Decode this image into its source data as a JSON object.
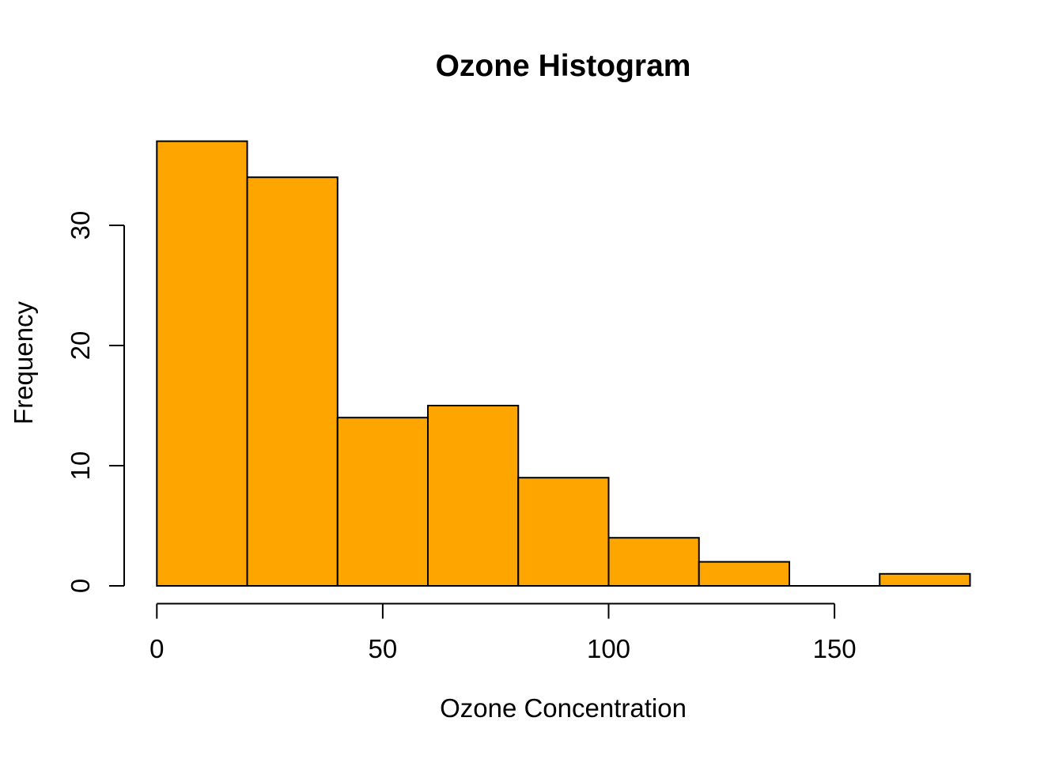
{
  "chart_data": {
    "type": "bar",
    "subtype": "histogram",
    "title": "Ozone Histogram",
    "xlabel": "Ozone Concentration",
    "ylabel": "Frequency",
    "bin_edges": [
      0,
      20,
      40,
      60,
      80,
      100,
      120,
      140,
      160,
      180
    ],
    "counts": [
      37,
      34,
      14,
      15,
      9,
      4,
      2,
      0,
      1
    ],
    "x_ticks": [
      0,
      50,
      100,
      150
    ],
    "y_ticks": [
      0,
      10,
      20,
      30
    ],
    "xlim": [
      0,
      180
    ],
    "ylim": [
      0,
      37
    ],
    "grid": false,
    "legend": "none",
    "bar_fill": "#FFA500",
    "bar_border": "#000000",
    "axis_color": "#000000",
    "text_color": "#000000",
    "background": "#FFFFFF"
  }
}
